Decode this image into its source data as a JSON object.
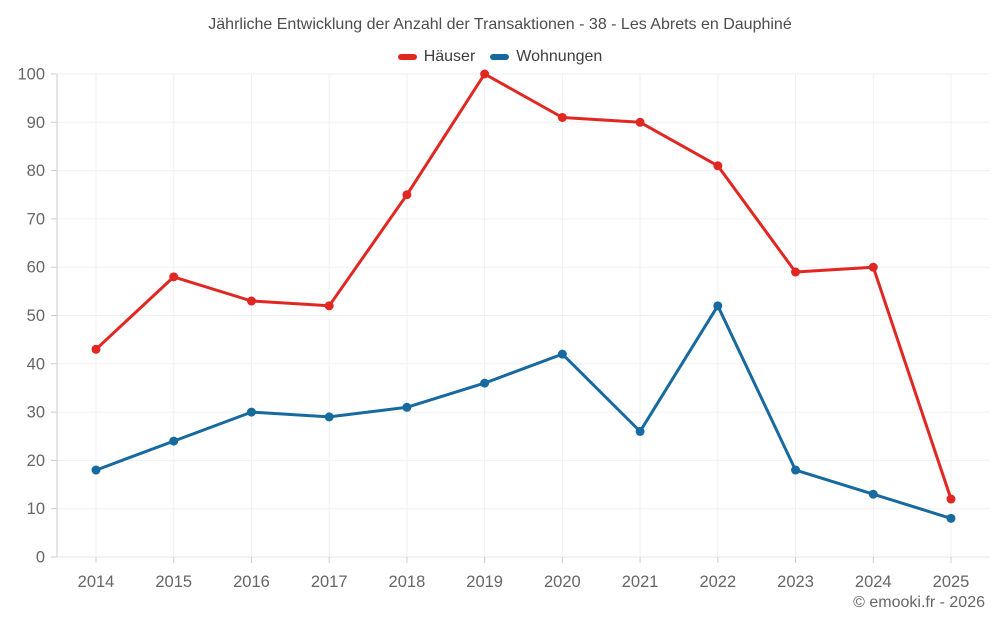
{
  "title": "Jährliche Entwicklung der Anzahl der Transaktionen - 38 - Les Abrets en Dauphiné",
  "footer": "© emooki.fr - 2026",
  "colors": {
    "grid": "#f0f0f0",
    "zero_line": "#e7e7e7",
    "axis": "#cccccc",
    "tick_text": "#666666",
    "title_text": "#4d4d4d",
    "legend_text": "#3d3d3d",
    "hauser": "#e02721",
    "wohnungen": "#17699e"
  },
  "chart_data": {
    "type": "line",
    "categories": [
      "2014",
      "2015",
      "2016",
      "2017",
      "2018",
      "2019",
      "2020",
      "2021",
      "2022",
      "2023",
      "2024",
      "2025"
    ],
    "series": [
      {
        "id": "hauser",
        "name": "Häuser",
        "color": "#e02721",
        "values": [
          43,
          58,
          53,
          52,
          75,
          100,
          91,
          90,
          81,
          59,
          60,
          12
        ]
      },
      {
        "id": "wohnungen",
        "name": "Wohnungen",
        "color": "#17699e",
        "values": [
          18,
          24,
          30,
          29,
          31,
          36,
          42,
          26,
          52,
          18,
          13,
          8
        ]
      }
    ],
    "title": "Jährliche Entwicklung der Anzahl der Transaktionen - 38 - Les Abrets en Dauphiné",
    "xlabel": "",
    "ylabel": "",
    "ylim": [
      0,
      100
    ],
    "ytick_step": 10,
    "grid": true,
    "legend_position": "top",
    "markers": true
  }
}
